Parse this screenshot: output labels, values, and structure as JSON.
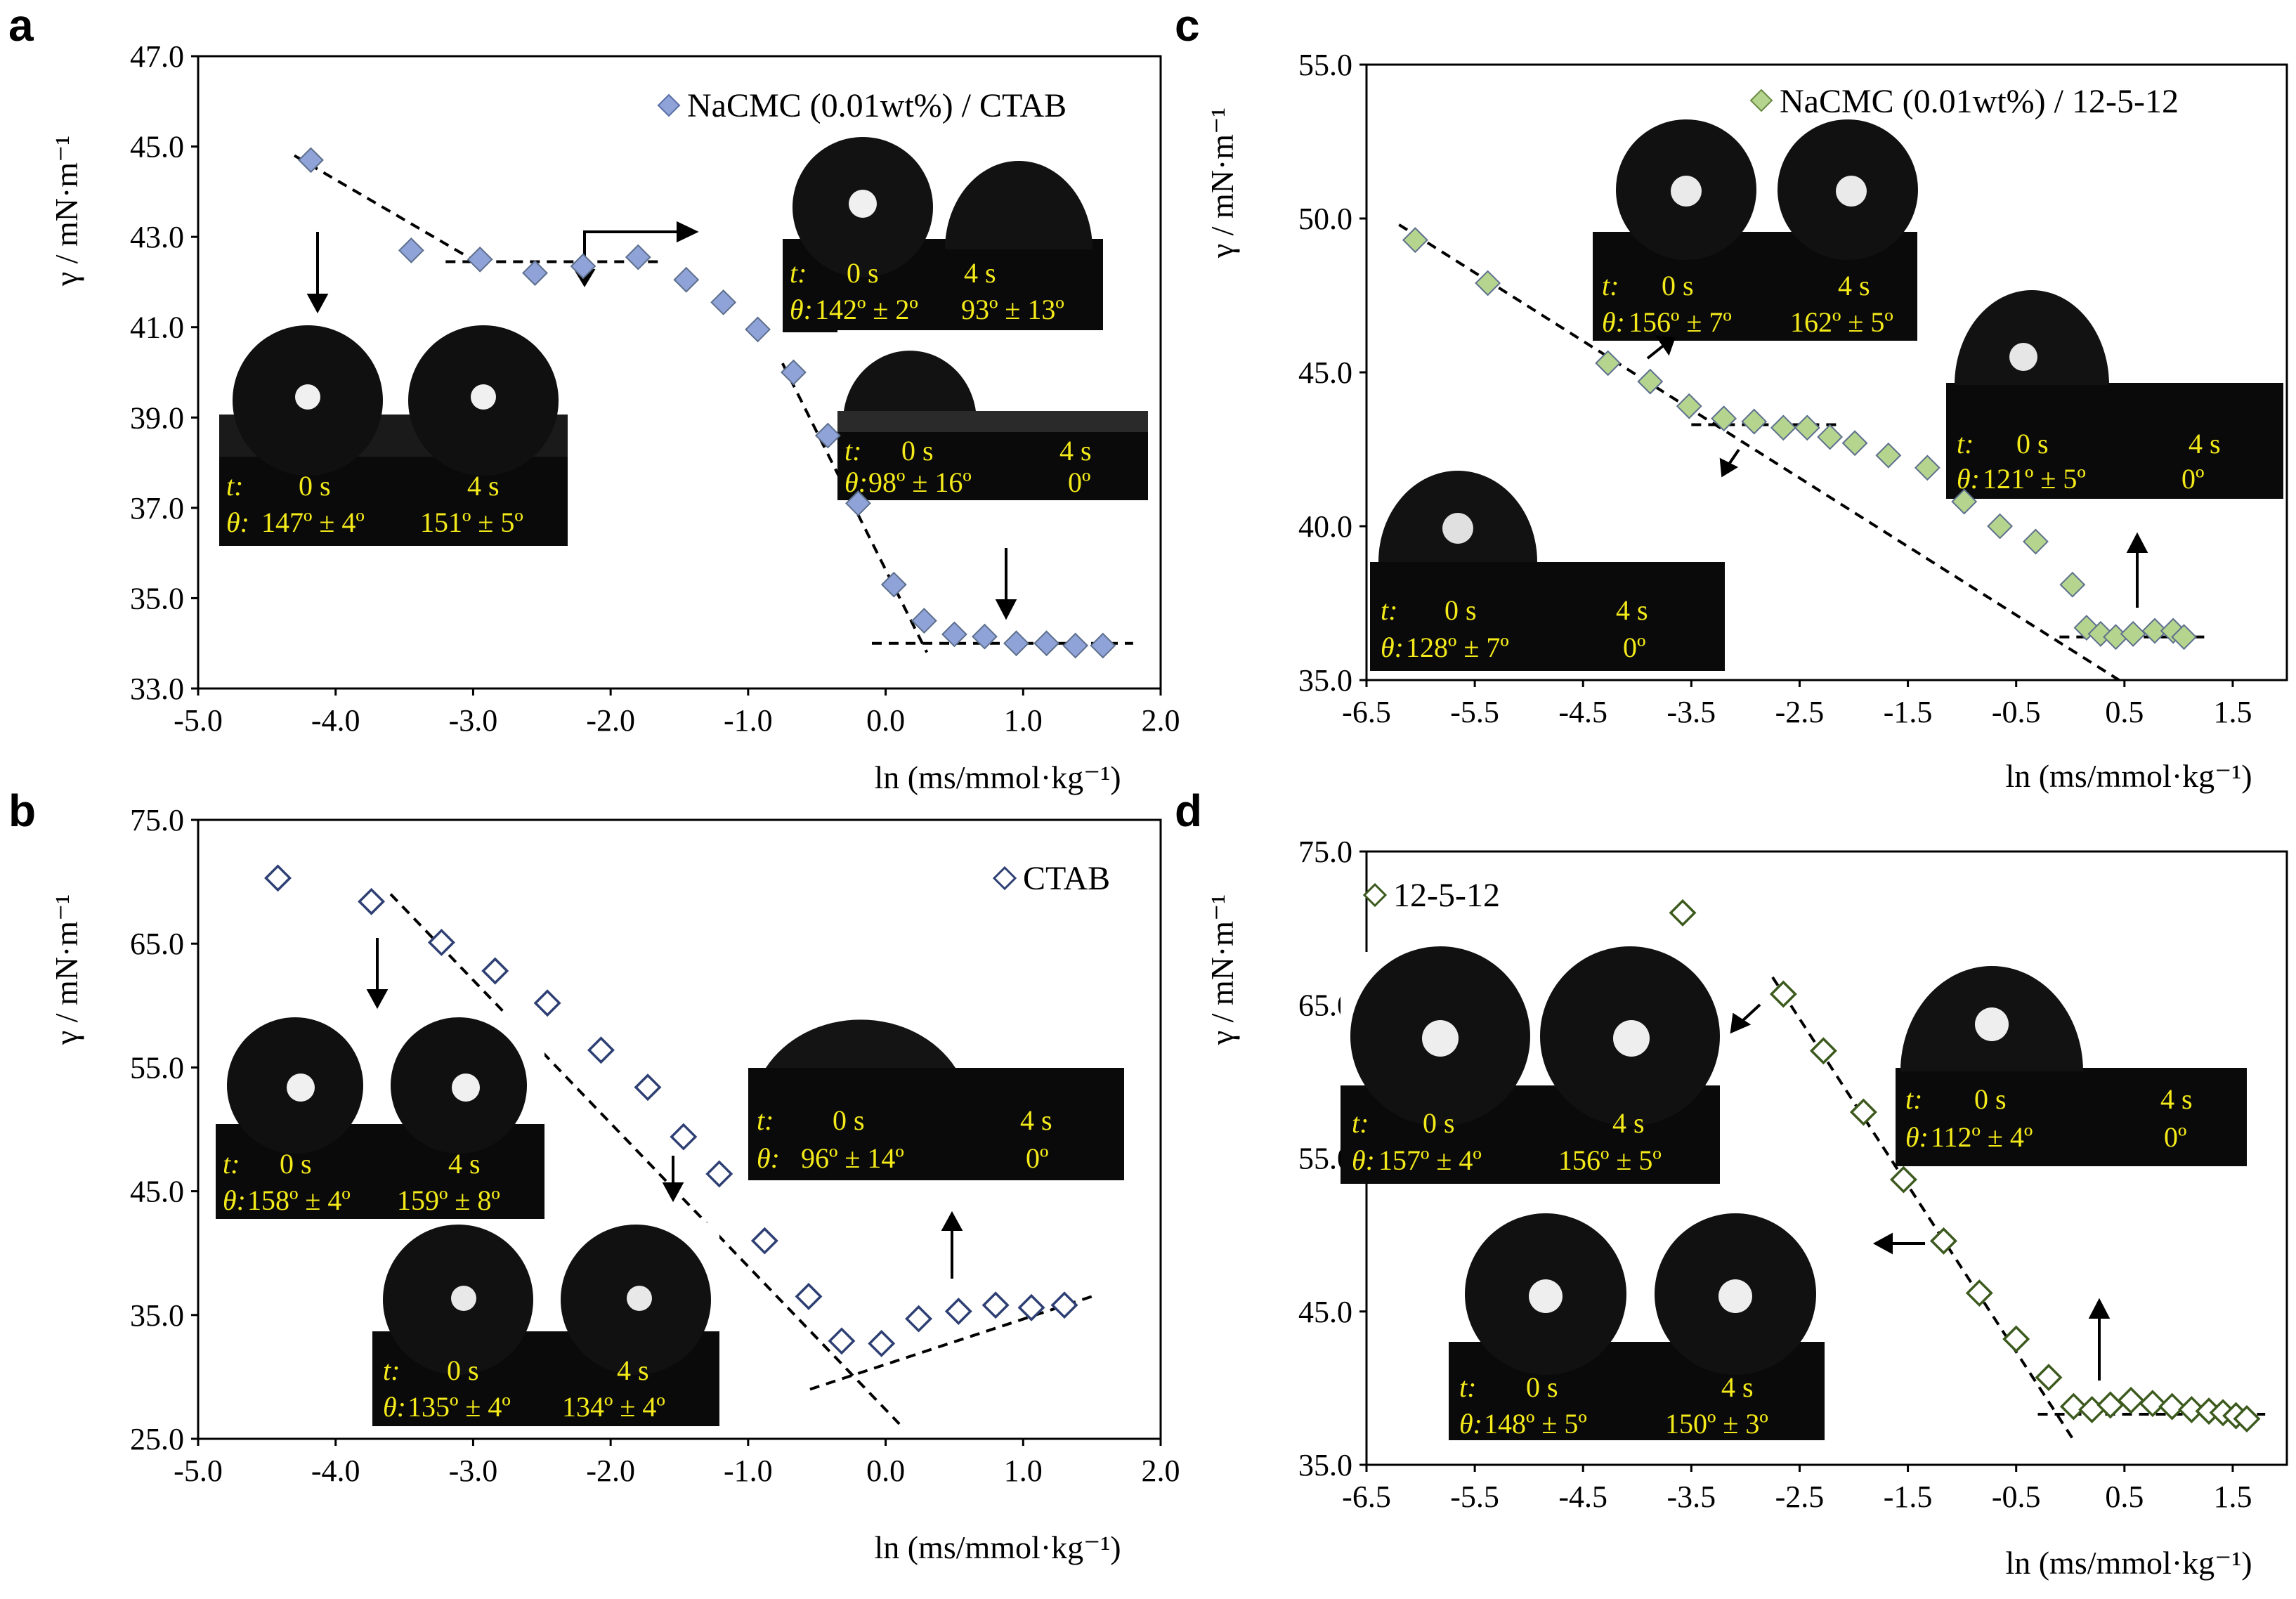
{
  "chart_data": [
    {
      "panel": "a",
      "type": "scatter",
      "legend": "NaCMC (0.01wt%) / CTAB",
      "marker": "diamond-filled",
      "marker_color": "#8fa3d8",
      "xlabel": "ln (ms/mmol·kg⁻¹)",
      "ylabel": "γ / mN·m⁻¹",
      "xlim": [
        -5.0,
        2.0
      ],
      "ylim": [
        33.0,
        47.0
      ],
      "x_ticks": [
        "-5.0",
        "-4.0",
        "-3.0",
        "-2.0",
        "-1.0",
        "0.0",
        "1.0",
        "2.0"
      ],
      "y_ticks": [
        "33.0",
        "35.0",
        "37.0",
        "39.0",
        "41.0",
        "43.0",
        "45.0",
        "47.0"
      ],
      "series": [
        {
          "name": "NaCMC (0.01wt%) / CTAB",
          "x": [
            -4.18,
            -3.45,
            -2.95,
            -2.55,
            -2.2,
            -1.8,
            -1.45,
            -1.18,
            -0.93,
            -0.67,
            -0.42,
            -0.2,
            0.06,
            0.28,
            0.5,
            0.72,
            0.95,
            1.17,
            1.38,
            1.58
          ],
          "y": [
            44.7,
            42.7,
            42.5,
            42.2,
            42.35,
            42.55,
            42.05,
            41.55,
            40.95,
            40.0,
            38.6,
            37.1,
            35.3,
            34.5,
            34.2,
            34.15,
            34.0,
            34.0,
            33.95,
            33.95
          ]
        }
      ],
      "fit_lines": [
        {
          "x": [
            -4.3,
            -2.95
          ],
          "y": [
            44.8,
            42.4
          ]
        },
        {
          "x": [
            -3.2,
            -1.65
          ],
          "y": [
            42.45,
            42.45
          ]
        },
        {
          "x": [
            -0.75,
            0.3
          ],
          "y": [
            40.2,
            33.8
          ]
        },
        {
          "x": [
            -0.1,
            1.8
          ],
          "y": [
            34.0,
            34.0
          ]
        }
      ],
      "insets": [
        {
          "t_label": "t:",
          "t0": "0 s",
          "t4": "4 s",
          "theta_label": "θ:",
          "theta0": "147º ± 4º",
          "theta4": "151º ± 5º"
        },
        {
          "t_label": "t:",
          "t0": "0 s",
          "t4": "4 s",
          "theta_label": "θ:",
          "theta0": "142º ± 2º",
          "theta4": "93º ± 13º"
        },
        {
          "t_label": "t:",
          "t0": "0 s",
          "t4": "4 s",
          "theta_label": "θ:",
          "theta0": "98º ± 16º",
          "theta4": "0º"
        }
      ]
    },
    {
      "panel": "b",
      "type": "scatter",
      "legend": "CTAB",
      "marker": "diamond-open",
      "marker_color": "#2e3f73",
      "xlabel": "ln (ms/mmol·kg⁻¹)",
      "ylabel": "γ / mN·m⁻¹",
      "xlim": [
        -5.0,
        2.0
      ],
      "ylim": [
        25.0,
        75.0
      ],
      "x_ticks": [
        "-5.0",
        "-4.0",
        "-3.0",
        "-2.0",
        "-1.0",
        "0.0",
        "1.0",
        "2.0"
      ],
      "y_ticks": [
        "25.0",
        "35.0",
        "45.0",
        "55.0",
        "65.0",
        "75.0"
      ],
      "series": [
        {
          "name": "CTAB",
          "x": [
            -4.42,
            -3.74,
            -3.23,
            -2.84,
            -2.46,
            -2.07,
            -1.73,
            -1.47,
            -1.21,
            -0.88,
            -0.56,
            -0.32,
            -0.03,
            0.24,
            0.53,
            0.8,
            1.06,
            1.3
          ],
          "y": [
            70.3,
            68.4,
            65.1,
            62.8,
            60.2,
            56.4,
            53.4,
            49.4,
            46.4,
            41.0,
            36.5,
            32.9,
            32.7,
            34.7,
            35.3,
            35.8,
            35.6,
            35.8
          ]
        }
      ],
      "fit_lines": [
        {
          "x": [
            -3.6,
            0.1
          ],
          "y": [
            69.0,
            26.2
          ]
        },
        {
          "x": [
            -0.55,
            1.5
          ],
          "y": [
            29.0,
            36.5
          ]
        }
      ],
      "insets": [
        {
          "t_label": "t:",
          "t0": "0 s",
          "t4": "4 s",
          "theta_label": "θ:",
          "theta0": "158º ± 4º",
          "theta4": "159º ± 8º"
        },
        {
          "t_label": "t:",
          "t0": "0 s",
          "t4": "4 s",
          "theta_label": "θ:",
          "theta0": "135º ± 4º",
          "theta4": "134º ± 4º"
        },
        {
          "t_label": "t:",
          "t0": "0 s",
          "t4": "4 s",
          "theta_label": "θ:",
          "theta0": "96º ± 14º",
          "theta4": "0º"
        }
      ]
    },
    {
      "panel": "c",
      "type": "scatter",
      "legend": "NaCMC (0.01wt%) / 12-5-12",
      "marker": "diamond-filled",
      "marker_color": "#b5d58f",
      "xlabel": "ln (ms/mmol·kg⁻¹)",
      "ylabel": "γ / mN·m⁻¹",
      "xlim": [
        -6.5,
        2.0
      ],
      "ylim": [
        35.0,
        55.0
      ],
      "x_ticks": [
        "-6.5",
        "-5.5",
        "-4.5",
        "-3.5",
        "-2.5",
        "-1.5",
        "-0.5",
        "0.5",
        "1.5"
      ],
      "y_ticks": [
        "35.0",
        "40.0",
        "45.0",
        "50.0",
        "55.0"
      ],
      "series": [
        {
          "name": "NaCMC (0.01wt%) / 12-5-12",
          "x": [
            -6.05,
            -5.38,
            -4.27,
            -3.88,
            -3.52,
            -3.2,
            -2.92,
            -2.65,
            -2.43,
            -2.22,
            -1.99,
            -1.68,
            -1.32,
            -0.98,
            -0.65,
            -0.32,
            0.02,
            0.15,
            0.28,
            0.42,
            0.58,
            0.78,
            0.95,
            1.05
          ],
          "y": [
            49.3,
            47.9,
            45.3,
            44.7,
            43.9,
            43.5,
            43.4,
            43.2,
            43.2,
            42.9,
            42.7,
            42.3,
            41.9,
            40.8,
            40.0,
            39.5,
            38.1,
            36.7,
            36.5,
            36.4,
            36.5,
            36.6,
            36.6,
            36.4
          ]
        }
      ],
      "fit_lines": [
        {
          "x": [
            -6.2,
            0.45
          ],
          "y": [
            49.8,
            35.0
          ]
        },
        {
          "x": [
            -3.5,
            -2.1
          ],
          "y": [
            43.3,
            43.3
          ]
        },
        {
          "x": [
            -0.1,
            1.3
          ],
          "y": [
            36.4,
            36.4
          ]
        }
      ],
      "insets": [
        {
          "t_label": "t:",
          "t0": "0 s",
          "t4": "4 s",
          "theta_label": "θ:",
          "theta0": "156º ± 7º",
          "theta4": "162º ± 5º"
        },
        {
          "t_label": "t:",
          "t0": "0 s",
          "t4": "4 s",
          "theta_label": "θ:",
          "theta0": "128º ± 7º",
          "theta4": "0º"
        },
        {
          "t_label": "t:",
          "t0": "0 s",
          "t4": "4 s",
          "theta_label": "θ:",
          "theta0": "121º ± 5º",
          "theta4": "0º"
        }
      ]
    },
    {
      "panel": "d",
      "type": "scatter",
      "legend": "12-5-12",
      "marker": "diamond-open",
      "marker_color": "#3c5a1e",
      "xlabel": "ln (ms/mmol·kg⁻¹)",
      "ylabel": "γ / mN·m⁻¹",
      "xlim": [
        -6.5,
        2.0
      ],
      "ylim": [
        35.0,
        75.0
      ],
      "x_ticks": [
        "-6.5",
        "-5.5",
        "-4.5",
        "-3.5",
        "-2.5",
        "-1.5",
        "-0.5",
        "0.5",
        "1.5"
      ],
      "y_ticks": [
        "35.0",
        "45.0",
        "55.0",
        "65.0",
        "75.0"
      ],
      "series": [
        {
          "name": "12-5-12",
          "x": [
            -3.58,
            -2.65,
            -2.28,
            -1.91,
            -1.54,
            -1.17,
            -0.84,
            -0.5,
            -0.2,
            0.03,
            0.2,
            0.37,
            0.56,
            0.76,
            0.94,
            1.12,
            1.28,
            1.41,
            1.53,
            1.63
          ],
          "y": [
            71.0,
            65.7,
            62.0,
            58.0,
            53.6,
            49.6,
            46.2,
            43.2,
            40.7,
            38.8,
            38.6,
            38.9,
            39.2,
            39.0,
            38.8,
            38.6,
            38.5,
            38.4,
            38.2,
            38.0
          ]
        }
      ],
      "fit_lines": [
        {
          "x": [
            -2.75,
            0.05
          ],
          "y": [
            66.8,
            36.4
          ]
        },
        {
          "x": [
            -0.3,
            1.8
          ],
          "y": [
            38.3,
            38.3
          ]
        }
      ],
      "insets": [
        {
          "t_label": "t:",
          "t0": "0 s",
          "t4": "4 s",
          "theta_label": "θ:",
          "theta0": "157º ± 4º",
          "theta4": "156º ± 5º"
        },
        {
          "t_label": "t:",
          "t0": "0 s",
          "t4": "4 s",
          "theta_label": "θ:",
          "theta0": "148º ± 5º",
          "theta4": "150º ± 3º"
        },
        {
          "t_label": "t:",
          "t0": "0 s",
          "t4": "4 s",
          "theta_label": "θ:",
          "theta0": "112º ± 4º",
          "theta4": "0º"
        }
      ]
    }
  ]
}
